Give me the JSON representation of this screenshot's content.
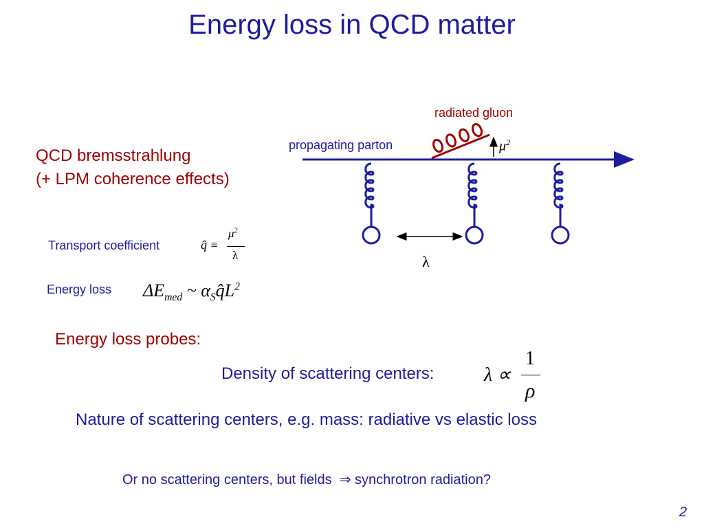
{
  "title": "Energy loss in QCD matter",
  "diagram": {
    "radiated_gluon": "radiated gluon",
    "propagating_parton": "propagating parton",
    "mu": "μ",
    "mu_exp": "2",
    "lambda": "λ"
  },
  "mechanism": {
    "line1": "QCD bremsstrahlung",
    "line2": "(+ LPM coherence effects)"
  },
  "transport": {
    "label": "Transport coefficient",
    "lhs": "q̂ ≡",
    "num": "μ",
    "num_exp": "2",
    "den": "λ"
  },
  "energy_loss": {
    "label": "Energy loss",
    "delta_e": "ΔE",
    "med": "med",
    "sim": "~ α",
    "s": "S",
    "ql": "q̂L",
    "exp": "2"
  },
  "probes": {
    "heading": "Energy loss probes:",
    "density": {
      "label": "Density of scattering centers:",
      "prop": "λ ∝",
      "num": "1",
      "den": "ρ"
    },
    "nature": "Nature of scattering centers, e.g. mass: radiative vs elastic loss",
    "fields": {
      "text": "Or no scattering centers, but fields",
      "arrow": "⇒",
      "result": "synchrotron radiation?"
    }
  },
  "page_number": "2"
}
